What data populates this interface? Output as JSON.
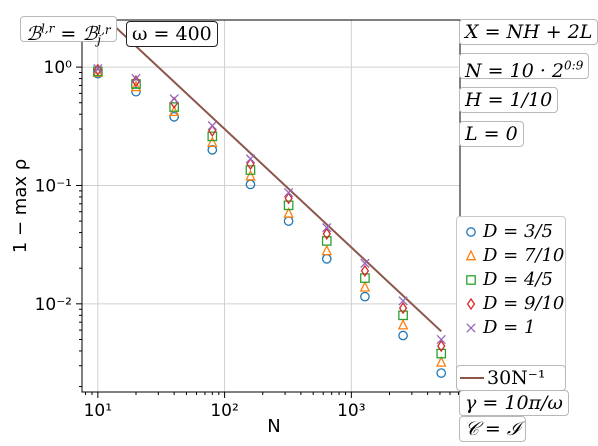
{
  "chart_data": {
    "type": "scatter",
    "title": "",
    "xlabel": "N",
    "ylabel": "1 − max ρ",
    "xscale": "log",
    "yscale": "log",
    "xlim": [
      7.5,
      7200
    ],
    "ylim": [
      0.0018,
      2.5
    ],
    "grid": true,
    "x": [
      10,
      20,
      40,
      80,
      160,
      320,
      640,
      1280,
      2560,
      5120
    ],
    "xticks": [
      {
        "value": 10,
        "label": "10¹"
      },
      {
        "value": 100,
        "label": "10²"
      },
      {
        "value": 1000,
        "label": "10³"
      }
    ],
    "yticks": [
      {
        "value": 1,
        "label": "10⁰"
      },
      {
        "value": 0.1,
        "label": "10⁻¹"
      },
      {
        "value": 0.01,
        "label": "10⁻²"
      }
    ],
    "series": [
      {
        "name": "D = 3/5",
        "marker": "circle",
        "color": "#1f77b4",
        "values": [
          0.88,
          0.62,
          0.38,
          0.2,
          0.102,
          0.05,
          0.024,
          0.0115,
          0.0054,
          0.0026
        ]
      },
      {
        "name": "D = 7/10",
        "marker": "triangle",
        "color": "#ff7f0e",
        "values": [
          0.9,
          0.68,
          0.42,
          0.23,
          0.12,
          0.058,
          0.028,
          0.0138,
          0.0066,
          0.0032
        ]
      },
      {
        "name": "D = 4/5",
        "marker": "square",
        "color": "#2ca02c",
        "values": [
          0.92,
          0.72,
          0.46,
          0.26,
          0.135,
          0.068,
          0.034,
          0.0165,
          0.008,
          0.0038
        ]
      },
      {
        "name": "D = 9/10",
        "marker": "diamond",
        "color": "#d62728",
        "values": [
          0.95,
          0.76,
          0.5,
          0.29,
          0.152,
          0.078,
          0.039,
          0.019,
          0.0092,
          0.0044
        ]
      },
      {
        "name": "D = 1",
        "marker": "x",
        "color": "#9467bd",
        "values": [
          0.97,
          0.8,
          0.54,
          0.32,
          0.168,
          0.087,
          0.044,
          0.022,
          0.0106,
          0.005
        ]
      }
    ],
    "reference_line": {
      "name": "30N⁻¹",
      "color": "#8c564b",
      "coefficient": 30,
      "exponent": -1,
      "x_range": [
        11.7,
        5120
      ]
    },
    "legend_position": "lower right, outside axes",
    "annotations": {
      "boundary": "ℬ^{l,r} = ℬ_j^{l,r}",
      "omega": "ω = 400",
      "x_def": "X = NH + 2L",
      "n_def": "N = 10 · 2^{0:9}",
      "h_def": "H = 1/10",
      "l_def": "L = 0",
      "gamma": "γ = 10π/ω",
      "c_def": "𝒞 = ℐ"
    }
  }
}
